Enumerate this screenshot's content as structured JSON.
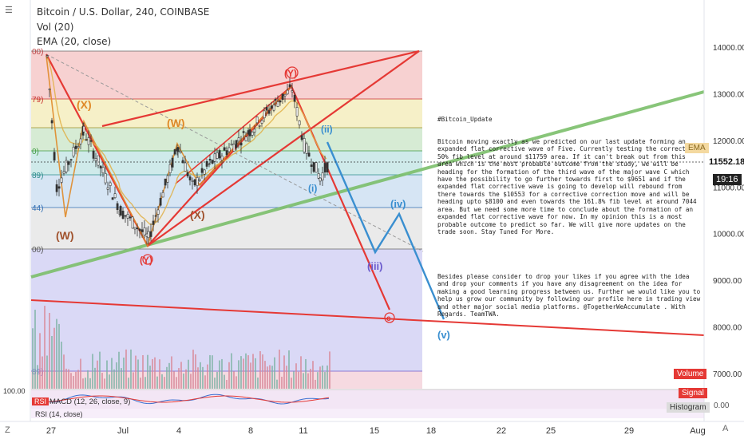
{
  "header": {
    "symbol": "Bitcoin / U.S. Dollar, 240, COINBASE",
    "vol": "Vol (20)",
    "ema": "EMA (20, close)"
  },
  "right_axis": {
    "labels": [
      "14000.00",
      "13000.00",
      "12000.00",
      "11000.00",
      "10000.00",
      "9000.00",
      "8000.00",
      "7000.00"
    ],
    "price_tag": "11552.18",
    "time_tag": "19:16",
    "ema_tag": "EMA",
    "volume_tag": "Volume",
    "signal_tag": "Signal",
    "histogram_tag": "Histogram",
    "osc_zero": "0.00",
    "left_tag": "100.00"
  },
  "x_axis": {
    "labels": [
      "27",
      "Jul",
      "4",
      "8",
      "11",
      "15",
      "18",
      "22",
      "25",
      "29",
      "Aug"
    ]
  },
  "fib_labels": [
    "00)",
    "79)",
    "0)",
    "89)",
    "44)",
    "00)",
    "89)"
  ],
  "wave_labels": [
    "(X)",
    "(W)",
    "(W)",
    "(X)",
    "(Y)",
    "(Y)",
    "(ii)",
    "(i)",
    "(iii)",
    "(iv)",
    "(v)",
    "c"
  ],
  "indicators": {
    "macd": "MACD (12, 26, close, 9)",
    "rsi": "RSI (14, close)",
    "rsi_badge": "RSI"
  },
  "note": {
    "title": "#Bitcoin_Update",
    "paragraph1": "Bitcoin moving exactly as we predicted on our last update forming an expanded flat corrective wave of Five. Currently testing the corrective 50% fib level at around $11759 area. If it can't break out from this area which is the most probable outcome from the study, we will be heading for the formation of the third wave of the major wave C which have the possibility to go further towards first to $9651 and if the expanded flat corrective wave is going to develop will rebound from there towards the $10553 for a corrective correction move and will be heading upto $8100 and even towards the 161.8% fib level at around 7044 area. But we need some more time to conclude about the formation of an expanded flat corrective wave for now. In my opinion this is a most probable outcome to predict so far. We will give more updates on the trade soon. Stay Tuned For More.",
    "paragraph2": "Besides please consider to drop your likes if you agree with the idea and drop your comments if you have any disagreement on the idea for making a good learning progress between us. Further we would like you to help us grow our community by following our profile here in trading view and other major social media platforms. @TogetherWeAccumulate . With Regards. TeamTWA."
  },
  "colors": {
    "red": "#e53935",
    "blue": "#3a8fd0",
    "green": "#7cbf6b",
    "orange": "#e08a28",
    "fib_red": "#f6c9c9",
    "fib_yellow": "#f4edbe",
    "fib_green": "#cfe8cd",
    "fib_teal": "#c7e6e6",
    "fib_blue": "#cfe1f2",
    "fib_grey": "#e6e6e6",
    "fib_violet": "#d4d2f5",
    "fib_pink": "#f4d3dc"
  },
  "chart_data": {
    "type": "candlestick",
    "symbol": "BTCUSD",
    "timeframe": "240",
    "exchange": "COINBASE",
    "y_axis": {
      "min": 6500,
      "max": 14500,
      "ticks": [
        7000,
        8000,
        9000,
        10000,
        11000,
        12000,
        13000,
        14000
      ]
    },
    "last_price": 11552.18,
    "price_path": [
      {
        "t": "Jun 27",
        "price": 13800
      },
      {
        "t": "Jun 28",
        "price": 11000
      },
      {
        "t": "Jun 29",
        "price": 12200
      },
      {
        "t": "Jun 30",
        "price": 10500
      },
      {
        "t": "Jul 1",
        "price": 9900
      },
      {
        "t": "Jul 3",
        "price": 11900
      },
      {
        "t": "Jul 4",
        "price": 11000
      },
      {
        "t": "Jul 6",
        "price": 11500
      },
      {
        "t": "Jul 8",
        "price": 12200
      },
      {
        "t": "Jul 9",
        "price": 12800
      },
      {
        "t": "Jul 10",
        "price": 13100
      },
      {
        "t": "Jul 11",
        "price": 11900
      },
      {
        "t": "Jul 11 b",
        "price": 11200
      },
      {
        "t": "Jul 12",
        "price": 11552
      }
    ],
    "projection_blue": [
      {
        "t": "Jul 12",
        "price": 12000
      },
      {
        "t": "Jul 15",
        "price": 9650
      },
      {
        "t": "Jul 16",
        "price": 10550
      },
      {
        "t": "Jul 18",
        "price": 8100
      }
    ],
    "projection_red": [
      {
        "t": "Jul 12",
        "price": 12000
      },
      {
        "t": "Jul 16",
        "price": 8350
      }
    ]
  }
}
